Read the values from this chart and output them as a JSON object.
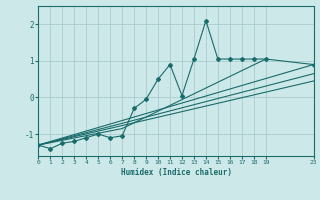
{
  "background_color": "#cce8e8",
  "grid_color": "#aacccc",
  "line_color": "#1a6b6b",
  "xlabel": "Humidex (Indice chaleur)",
  "xlim": [
    0,
    23
  ],
  "ylim": [
    -1.6,
    2.5
  ],
  "yticks": [
    -1,
    0,
    1,
    2
  ],
  "xticks": [
    0,
    1,
    2,
    3,
    4,
    5,
    6,
    7,
    8,
    9,
    10,
    11,
    12,
    13,
    14,
    15,
    16,
    17,
    18,
    19,
    23
  ],
  "lines": [
    {
      "x": [
        0,
        1,
        2,
        3,
        4,
        5,
        6,
        7,
        8,
        9,
        10,
        11,
        12,
        13,
        14,
        15,
        16,
        17,
        18,
        19,
        23
      ],
      "y": [
        -1.3,
        -1.4,
        -1.25,
        -1.2,
        -1.1,
        -1.0,
        -1.1,
        -1.05,
        -0.3,
        -0.05,
        0.5,
        0.9,
        0.05,
        1.05,
        2.1,
        1.05,
        1.05,
        1.05,
        1.05,
        1.05,
        0.9
      ],
      "marker": "D",
      "markersize": 2.0,
      "linewidth": 0.8,
      "has_marker": true
    },
    {
      "x": [
        0,
        23
      ],
      "y": [
        -1.3,
        0.9
      ],
      "marker": null,
      "markersize": 0,
      "linewidth": 0.8,
      "has_marker": false
    },
    {
      "x": [
        0,
        23
      ],
      "y": [
        -1.3,
        0.65
      ],
      "marker": null,
      "markersize": 0,
      "linewidth": 0.8,
      "has_marker": false
    },
    {
      "x": [
        0,
        23
      ],
      "y": [
        -1.3,
        0.45
      ],
      "marker": null,
      "markersize": 0,
      "linewidth": 0.8,
      "has_marker": false
    },
    {
      "x": [
        0,
        7,
        19
      ],
      "y": [
        -1.3,
        -0.85,
        1.05
      ],
      "marker": null,
      "markersize": 0,
      "linewidth": 0.8,
      "has_marker": false
    }
  ]
}
